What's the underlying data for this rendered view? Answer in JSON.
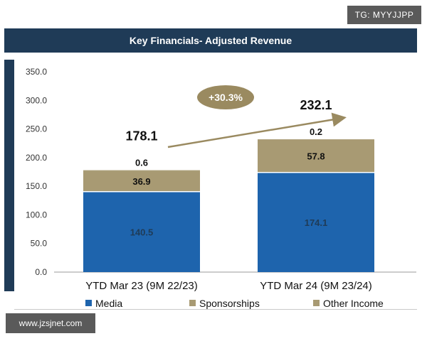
{
  "watermark_top": "TG: MYYJJPP",
  "watermark_bottom": "www.jzsjnet.com",
  "chart_data": {
    "type": "bar",
    "stacked": true,
    "title": "Key Financials- Adjusted Revenue",
    "categories": [
      "YTD Mar 23 (9M 22/23)",
      "YTD Mar 24 (9M 23/24)"
    ],
    "series": [
      {
        "name": "Media",
        "values": [
          140.5,
          174.1
        ],
        "color": "#1e64ad",
        "label_color": "#1f3b57"
      },
      {
        "name": "Sponsorships",
        "values": [
          36.9,
          57.8
        ],
        "color": "#a89a73",
        "label_color": "#111111"
      },
      {
        "name": "Other Income",
        "values": [
          0.6,
          0.2
        ],
        "color": "#a89a73",
        "label_color": "#111111"
      }
    ],
    "totals": [
      "178.1",
      "232.1"
    ],
    "ylim": [
      0,
      350
    ],
    "y_ticks": [
      "0.0",
      "50.0",
      "100.0",
      "150.0",
      "200.0",
      "250.0",
      "300.0",
      "350.0"
    ],
    "growth_annotation": "+30.3%",
    "annotation_color": "#9a8a60",
    "legend": [
      "Media",
      "Sponsorships",
      "Other Income"
    ]
  }
}
